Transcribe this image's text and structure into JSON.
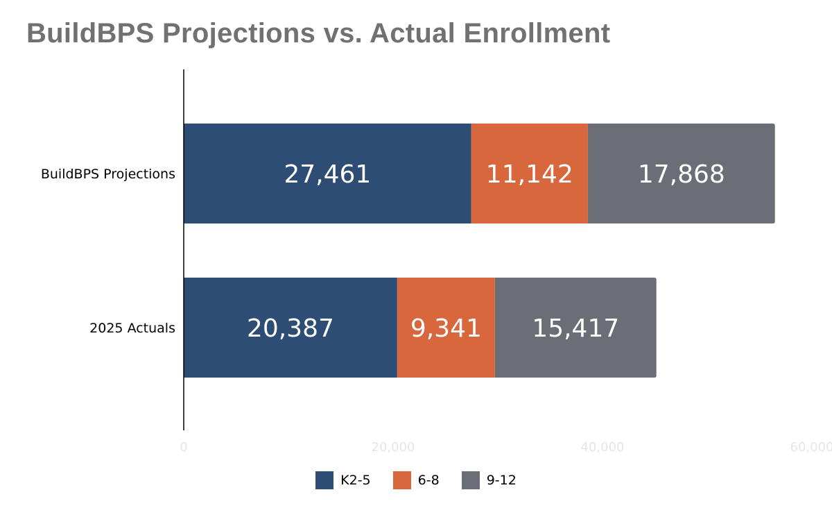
{
  "chart_data": {
    "type": "bar",
    "orientation": "horizontal",
    "stacked": true,
    "title": "BuildBPS Projections vs. Actual Enrollment",
    "categories": [
      "BuildBPS Projections",
      "2025 Actuals"
    ],
    "series": [
      {
        "name": "K2-5",
        "color": "#2d4d74",
        "values": [
          27461,
          20387
        ],
        "labels": [
          "27,461",
          "20,387"
        ]
      },
      {
        "name": "6-8",
        "color": "#d9673d",
        "values": [
          11142,
          9341
        ],
        "labels": [
          "11,142",
          "9,341"
        ]
      },
      {
        "name": "9-12",
        "color": "#6b6e76",
        "values": [
          17868,
          15417
        ],
        "labels": [
          "17,868",
          "15,417"
        ]
      }
    ],
    "xlim": [
      0,
      60000
    ],
    "x_ticks": [
      0,
      20000,
      40000,
      60000
    ],
    "x_tick_labels": [
      "0",
      "20,000",
      "40,000",
      "60,000"
    ],
    "grid": false,
    "legend_position": "bottom-center"
  }
}
